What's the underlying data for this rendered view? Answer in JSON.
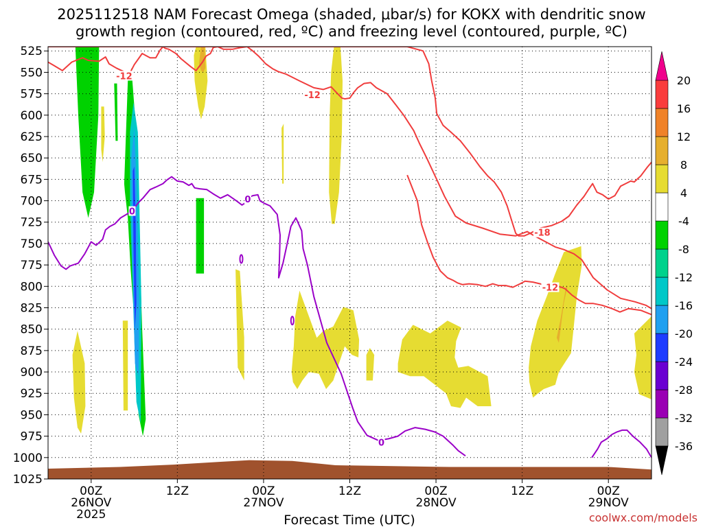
{
  "chart_data": {
    "type": "contour",
    "title_line1": "2025112518 NAM Forecast Omega (shaded, μbar/s) for KOKX with dendritic snow",
    "title_line2": "growth region (contoured, red, ºC) and freezing level (contoured, purple, ºC)",
    "xlabel": "Forecast Time (UTC)",
    "watermark": "coolwx.com/models",
    "x_ticks": [
      {
        "h": 6,
        "line1": "00Z",
        "line2": "26NOV",
        "line3": "2025"
      },
      {
        "h": 18,
        "line1": "12Z",
        "line2": "",
        "line3": ""
      },
      {
        "h": 30,
        "line1": "00Z",
        "line2": "27NOV",
        "line3": ""
      },
      {
        "h": 42,
        "line1": "12Z",
        "line2": "",
        "line3": ""
      },
      {
        "h": 54,
        "line1": "00Z",
        "line2": "28NOV",
        "line3": ""
      },
      {
        "h": 66,
        "line1": "12Z",
        "line2": "",
        "line3": ""
      },
      {
        "h": 78,
        "line1": "00Z",
        "line2": "29NOV",
        "line3": ""
      }
    ],
    "xlim_hours": [
      0,
      84
    ],
    "ylim_hPa": [
      1025,
      520
    ],
    "y_ticks": [
      525,
      550,
      575,
      600,
      625,
      650,
      675,
      700,
      725,
      750,
      775,
      800,
      825,
      850,
      875,
      900,
      925,
      950,
      975,
      1000,
      1025
    ],
    "colorbar": {
      "levels": [
        -36,
        -32,
        -28,
        -24,
        -20,
        -16,
        -12,
        -8,
        -4,
        4,
        8,
        12,
        16,
        20
      ],
      "colors": [
        "#000000",
        "#a0a0a0",
        "#9a00b4",
        "#6a00d2",
        "#1e3cff",
        "#20a0f0",
        "#00c8c8",
        "#00d28c",
        "#00d200",
        "#ffffff",
        "#e6dc32",
        "#e6af2d",
        "#f08228",
        "#fa3c3c",
        "#f0008c"
      ]
    },
    "omega_areas": [
      {
        "color": "#00d200",
        "h": [
          3.8,
          4.2,
          4.8,
          5.6,
          6.4,
          7.0,
          7.1,
          6.5,
          5.9,
          5.1,
          4.4,
          4.0
        ],
        "p": [
          520,
          600,
          690,
          720,
          690,
          600,
          520,
          520,
          520,
          520,
          520,
          520
        ]
      },
      {
        "color": "#00d200",
        "h": [
          10.6,
          11.1,
          11.6,
          12.1,
          12.6,
          13.1,
          13.6,
          13.2,
          12.6,
          12.1,
          11.5,
          11.1,
          10.7
        ],
        "p": [
          680,
          560,
          545,
          600,
          720,
          850,
          955,
          975,
          950,
          850,
          780,
          720,
          690
        ]
      },
      {
        "color": "#00d200",
        "h": [
          9.2,
          9.6,
          9.7,
          9.4
        ],
        "p": [
          563,
          563,
          630,
          630
        ]
      },
      {
        "color": "#00d200",
        "h": [
          20.6,
          21.7,
          21.7,
          20.6
        ],
        "p": [
          697,
          697,
          785,
          785
        ]
      },
      {
        "color": "#00c8c8",
        "h": [
          11.4,
          11.9,
          12.5,
          13.0,
          12.9,
          12.3,
          11.8,
          11.4
        ],
        "p": [
          620,
          585,
          620,
          820,
          960,
          935,
          810,
          700
        ]
      },
      {
        "color": "#20a0f0",
        "h": [
          11.6,
          12.0,
          12.4,
          12.7,
          12.6,
          12.1,
          11.7
        ],
        "p": [
          650,
          615,
          700,
          830,
          905,
          890,
          760
        ]
      },
      {
        "color": "#1e3cff",
        "h": [
          11.8,
          12.0,
          12.2,
          12.3,
          12.1,
          11.9
        ],
        "p": [
          665,
          660,
          725,
          820,
          850,
          760
        ]
      },
      {
        "color": "#e6dc32",
        "h": [
          21.3,
          21.9,
          22.2,
          21.8,
          21.3,
          20.9,
          20.4,
          20.3,
          20.6
        ],
        "p": [
          520,
          520,
          560,
          590,
          605,
          590,
          560,
          530,
          520
        ]
      },
      {
        "color": "#e6dc32",
        "h": [
          39.8,
          40.7,
          41.0,
          40.9,
          40.5,
          39.9,
          39.5,
          39.1,
          39.2,
          39.4
        ],
        "p": [
          520,
          520,
          560,
          620,
          690,
          727,
          727,
          690,
          600,
          550
        ]
      },
      {
        "color": "#e6dc32",
        "h": [
          7.4,
          7.8,
          7.9,
          7.6,
          7.4
        ],
        "p": [
          590,
          590,
          625,
          655,
          640
        ]
      },
      {
        "color": "#e6dc32",
        "h": [
          3.4,
          4.1,
          5.1,
          5.2,
          4.6,
          4.1,
          3.6
        ],
        "p": [
          880,
          852,
          890,
          940,
          972,
          965,
          930
        ]
      },
      {
        "color": "#e6dc32",
        "h": [
          10.4,
          11.1,
          11.1,
          10.5
        ],
        "p": [
          840,
          840,
          945,
          945
        ]
      },
      {
        "color": "#e6dc32",
        "h": [
          26.1,
          26.7,
          27.3,
          27.3,
          26.4
        ],
        "p": [
          780,
          782,
          860,
          910,
          895
        ]
      },
      {
        "color": "#e6dc32",
        "h": [
          32.5,
          32.8,
          32.8,
          32.6
        ],
        "p": [
          615,
          610,
          680,
          680
        ]
      },
      {
        "color": "#e6dc32",
        "h": [
          33.9,
          34.2,
          34.4,
          35.0,
          36.4,
          37.4,
          38.3,
          39.7,
          41.1,
          42.5,
          43.3,
          43.2,
          42.3,
          41.3,
          39.7,
          38.7,
          37.7,
          36.3,
          35.4,
          34.7,
          34.1
        ],
        "p": [
          900,
          870,
          835,
          805,
          837,
          860,
          852,
          847,
          824,
          828,
          862,
          883,
          880,
          870,
          910,
          920,
          902,
          900,
          910,
          920,
          912
        ]
      },
      {
        "color": "#e6dc32",
        "h": [
          44.3,
          44.8,
          45.4,
          45.2,
          44.3
        ],
        "p": [
          880,
          872,
          880,
          910,
          910
        ]
      },
      {
        "color": "#e6dc32",
        "h": [
          48.7,
          49.3,
          50.8,
          53.2,
          55.6,
          57.5,
          56.8,
          56.6,
          57.1,
          58.5,
          61.2,
          61.7,
          59.8,
          58.2,
          57.4,
          56.1,
          55.4,
          52.3,
          50.4,
          48.7
        ],
        "p": [
          890,
          862,
          845,
          855,
          840,
          848,
          864,
          883,
          895,
          893,
          905,
          940,
          940,
          930,
          942,
          940,
          925,
          905,
          905,
          900
        ]
      },
      {
        "color": "#e6dc32",
        "h": [
          67.2,
          68.1,
          69.5,
          70.6,
          71.8,
          74.2,
          74.3,
          73.6,
          72.8,
          71.1,
          70.6,
          69.0,
          68.2,
          67.5,
          67.0,
          66.9
        ],
        "p": [
          870,
          840,
          810,
          785,
          760,
          753,
          775,
          812,
          878,
          900,
          915,
          920,
          925,
          930,
          912,
          895
        ]
      },
      {
        "color": "#e6dc32",
        "h": [
          81.6,
          84,
          84,
          82.3,
          81.6,
          81.9
        ],
        "p": [
          855,
          835,
          932,
          926,
          900,
          880
        ]
      },
      {
        "color": "#e6af2d",
        "h": [
          21.3,
          21.8,
          21.9,
          21.6,
          21.3,
          21.0
        ],
        "p": [
          520,
          520,
          545,
          550,
          548,
          540
        ]
      },
      {
        "color": "#e6af2d",
        "h": [
          71.3,
          72.1,
          72.3,
          71.8,
          71.1,
          70.8
        ],
        "p": [
          840,
          800,
          800,
          820,
          866,
          860
        ]
      }
    ],
    "red_contours": [
      {
        "label": "-12",
        "h": [
          0,
          0.8,
          2.0,
          3.3,
          4.8,
          5.6,
          7.1,
          8.0,
          8.5,
          9.5,
          10.5,
          11.2,
          12.0,
          13.1,
          14.2,
          15.0,
          15.6,
          16.0,
          16.3,
          16.8,
          17.8,
          18.5,
          19.8,
          20.6,
          21.5,
          22.0,
          22.6,
          23.0,
          23.6,
          24.4,
          25.7,
          26.9,
          27.7,
          28.5,
          29.3,
          30.3,
          31.3,
          32.0,
          33.1,
          35.0,
          37.0,
          38.3,
          39.4,
          40.2,
          40.9,
          41.3,
          42.0,
          42.5,
          43.1,
          44.0,
          44.9,
          45.7,
          47.2,
          48.4,
          49.5,
          50.9,
          51.7,
          52.7,
          54.1,
          55.2,
          56.7,
          58.2,
          60.5,
          62.9,
          65.1,
          66.7,
          67.5,
          68.6,
          70.6,
          71.8,
          73.2,
          74.3,
          75.9,
          77.8,
          79.7,
          81.7,
          83.2,
          84.0
        ],
        "p": [
          538,
          542,
          548,
          538,
          533,
          536,
          537,
          532,
          540,
          545,
          549,
          554,
          541,
          528,
          533,
          533,
          524,
          520,
          522,
          523,
          528,
          534,
          543,
          548,
          538,
          531,
          528,
          521,
          520,
          523,
          523,
          521,
          520,
          525,
          531,
          540,
          546,
          549,
          552,
          560,
          568,
          570,
          567,
          574,
          580,
          581,
          580,
          574,
          568,
          563,
          562,
          568,
          575,
          588,
          600,
          618,
          633,
          650,
          675,
          695,
          718,
          726,
          732,
          739,
          741,
          736,
          740,
          745,
          754,
          757,
          762,
          769,
          790,
          804,
          814,
          818,
          822,
          826
        ]
      },
      {
        "label": "-18",
        "h": [
          0,
          5.0,
          11.0,
          17.0,
          24.0,
          30.0,
          35.0,
          40.0,
          45.0,
          50.0,
          52.2,
          53.0,
          53.4,
          53.9,
          54.1,
          55.0,
          56.1,
          57.4,
          58.8,
          60.1,
          61.2,
          62.1,
          63.1,
          63.9,
          64.6,
          65.1,
          65.5,
          66.3,
          67.1,
          68.5,
          70.1,
          71.5,
          72.5,
          73.6,
          74.6,
          75.3,
          75.8,
          76.4,
          77.2,
          78.0,
          78.9,
          79.7,
          80.4,
          81.1,
          81.6,
          82.5,
          83.4,
          84.0
        ],
        "p": [
          520,
          520,
          520,
          520,
          520,
          520,
          520,
          520,
          520,
          520,
          525,
          540,
          560,
          580,
          598,
          612,
          620,
          630,
          645,
          660,
          671,
          678,
          690,
          706,
          725,
          738,
          741,
          741,
          738,
          732,
          729,
          724,
          718,
          705,
          695,
          686,
          680,
          690,
          693,
          698,
          694,
          683,
          680,
          677,
          678,
          671,
          661,
          655
        ]
      },
      {
        "label": "-12b",
        "h": [
          50.0,
          51.4,
          52.0,
          52.8,
          53.6,
          54.6,
          55.6,
          56.4,
          57.0,
          57.7,
          58.6,
          59.8,
          60.9,
          61.9,
          62.7,
          63.7,
          64.7,
          65.7,
          66.4,
          67.5,
          68.5,
          69.5,
          70.5,
          71.5,
          72.0,
          72.9,
          73.9,
          74.8,
          75.9,
          77.1,
          78.5,
          79.6,
          80.8,
          82.5,
          84.0
        ],
        "p": [
          670,
          700,
          728,
          748,
          766,
          782,
          790,
          793,
          796,
          798,
          797,
          798,
          800,
          797,
          799,
          799,
          801,
          797,
          794,
          795,
          797,
          800,
          800,
          801,
          803,
          810,
          816,
          820,
          820,
          822,
          826,
          830,
          826,
          828,
          833
        ]
      }
    ],
    "red_labels": [
      {
        "text": "-12",
        "h": 10.6,
        "p": 554
      },
      {
        "text": "-12",
        "h": 36.8,
        "p": 576
      },
      {
        "text": "-18",
        "h": 68.8,
        "p": 737
      },
      {
        "text": "-12",
        "h": 69.9,
        "p": 801
      }
    ],
    "purple_contours": [
      {
        "label": "0",
        "h": [
          0,
          0.9,
          1.8,
          2.5,
          3.1,
          4.2,
          5.1,
          6.0,
          6.7,
          7.6,
          8.0,
          8.6,
          9.3,
          10.1,
          10.9,
          11.7,
          12.6,
          13.2,
          14.2,
          15.0,
          16.0,
          16.5,
          17.2,
          18.0,
          18.8,
          19.6,
          20.0,
          20.4,
          21.1,
          22.1,
          23.0,
          24.0,
          25.0,
          26.2,
          27.0,
          27.7,
          28.0,
          28.5,
          29.2,
          29.5,
          30.1,
          30.9,
          31.9,
          32.3,
          32.2,
          32.1,
          32.7,
          33.8,
          34.5,
          35.3,
          35.5,
          36.1,
          37.0,
          38.8,
          40.8,
          42.4,
          43.1,
          44.4,
          46.0,
          47.4,
          48.7,
          49.7,
          51.1,
          52.5,
          53.8,
          55.0,
          56.3,
          57.1,
          58.1
        ],
        "p": [
          748,
          764,
          776,
          780,
          776,
          773,
          762,
          748,
          752,
          745,
          734,
          730,
          727,
          720,
          716,
          712,
          702,
          697,
          687,
          684,
          680,
          676,
          672,
          677,
          678,
          682,
          680,
          685,
          686,
          687,
          692,
          697,
          693,
          700,
          705,
          701,
          696,
          694,
          693,
          700,
          703,
          706,
          716,
          740,
          770,
          790,
          773,
          730,
          720,
          735,
          756,
          775,
          812,
          866,
          902,
          942,
          958,
          974,
          980,
          978,
          975,
          969,
          965,
          967,
          970,
          975,
          985,
          992,
          998
        ]
      },
      {
        "label": "0b",
        "h": [
          75.7,
          76.5,
          77.0,
          77.8,
          78.5,
          79.2,
          79.9,
          80.6,
          81.4,
          82.4,
          83.3,
          84.0
        ],
        "p": [
          1000,
          990,
          982,
          978,
          973,
          970,
          968,
          968,
          975,
          982,
          990,
          1000
        ]
      }
    ],
    "purple_labels": [
      {
        "text": "0",
        "h": 11.7,
        "p": 712
      },
      {
        "text": "0",
        "h": 27.8,
        "p": 698
      },
      {
        "text": "0",
        "h": 46.4,
        "p": 982
      }
    ],
    "terrain": {
      "color": "#a0522d",
      "h": [
        0,
        10,
        18,
        24,
        28,
        34,
        40,
        48,
        56,
        64,
        70,
        78,
        84
      ],
      "p": [
        1013,
        1011,
        1008,
        1005,
        1003,
        1004,
        1009,
        1010,
        1011,
        1011,
        1011,
        1011,
        1014
      ]
    }
  }
}
